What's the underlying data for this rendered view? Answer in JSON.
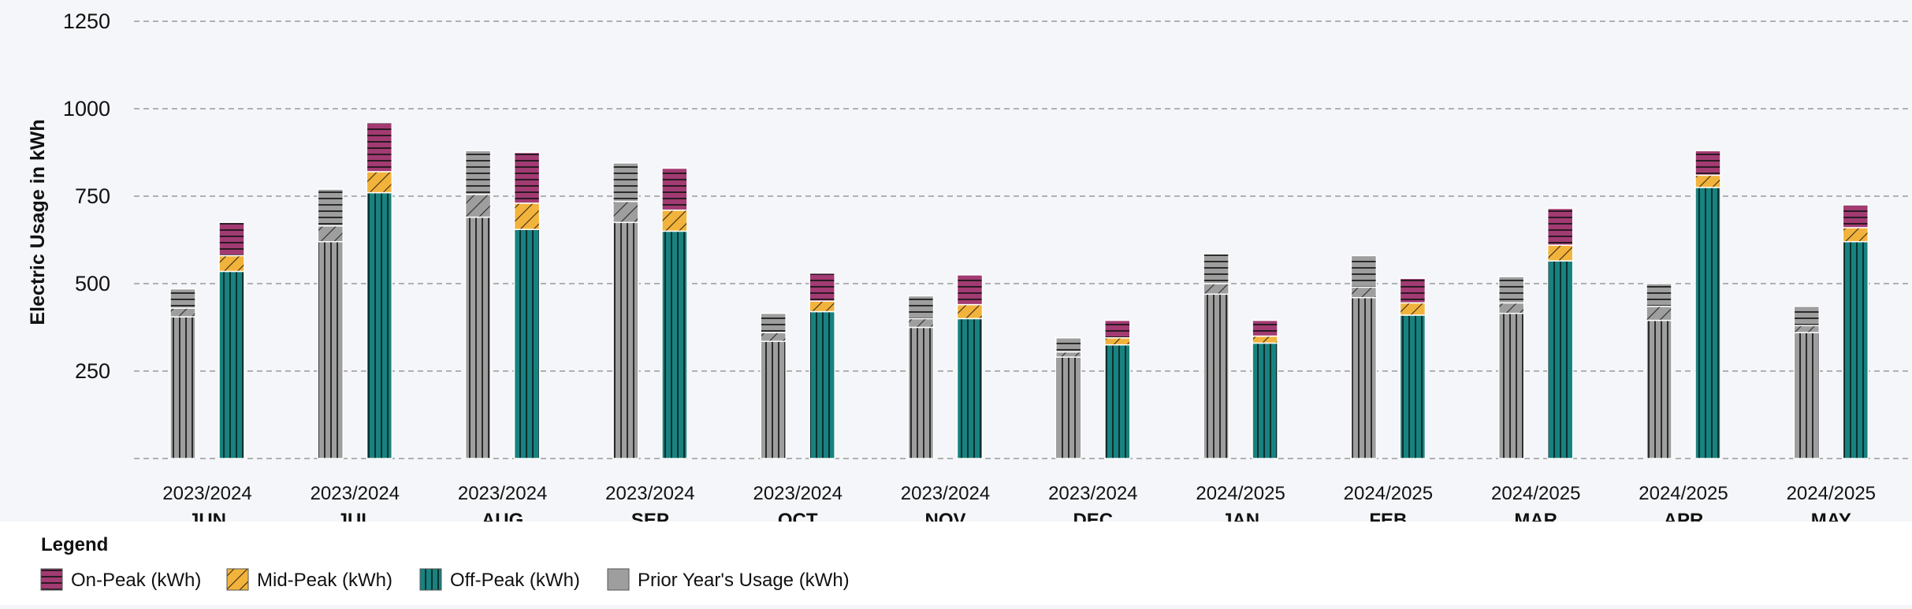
{
  "chart_data": {
    "type": "bar",
    "stacked": true,
    "grouped": true,
    "ylabel": "Electric Usage in kWh",
    "xlabel": "",
    "ylim": [
      0,
      1250
    ],
    "yticks": [
      "250",
      "500",
      "750",
      "1000",
      "1250"
    ],
    "grid": true,
    "legend_position": "bottom-left",
    "categories": [
      "JUN",
      "JUL",
      "AUG",
      "SEP",
      "OCT",
      "NOV",
      "DEC",
      "JAN",
      "FEB",
      "MAR",
      "APR",
      "MAY"
    ],
    "years": [
      "2023/2024",
      "2023/2024",
      "2023/2024",
      "2023/2024",
      "2023/2024",
      "2023/2024",
      "2023/2024",
      "2024/2025",
      "2024/2025",
      "2024/2025",
      "2024/2025",
      "2024/2025"
    ],
    "prior_year": {
      "name": "Prior Year's Usage (kWh)",
      "off_peak": [
        405,
        620,
        690,
        675,
        335,
        375,
        290,
        470,
        460,
        415,
        395,
        360
      ],
      "mid_peak": [
        25,
        45,
        65,
        60,
        25,
        25,
        15,
        30,
        30,
        30,
        40,
        20
      ],
      "on_peak": [
        55,
        105,
        125,
        110,
        55,
        65,
        40,
        85,
        90,
        75,
        65,
        55
      ]
    },
    "series": [
      {
        "name": "On-Peak (kWh)",
        "color": "#a23b72",
        "pattern": "horizontal-lines",
        "values": [
          95,
          140,
          145,
          120,
          80,
          85,
          50,
          45,
          70,
          105,
          70,
          65
        ]
      },
      {
        "name": "Mid-Peak (kWh)",
        "color": "#f2b33d",
        "pattern": "diagonal-lines",
        "values": [
          45,
          60,
          75,
          60,
          30,
          40,
          20,
          20,
          35,
          45,
          35,
          40
        ]
      },
      {
        "name": "Off-Peak (kWh)",
        "color": "#17827f",
        "pattern": "vertical-lines",
        "values": [
          535,
          760,
          655,
          650,
          420,
          400,
          325,
          330,
          410,
          565,
          775,
          620
        ]
      }
    ],
    "legend": {
      "title": "Legend",
      "items": [
        "On-Peak (kWh)",
        "Mid-Peak (kWh)",
        "Off-Peak (kWh)",
        "Prior Year's Usage (kWh)"
      ]
    },
    "colors": {
      "prior_year": "#9e9e9e",
      "grid": "#9a9a9a",
      "background": "#f4f6f9",
      "legend_band": "#ffffff"
    }
  }
}
